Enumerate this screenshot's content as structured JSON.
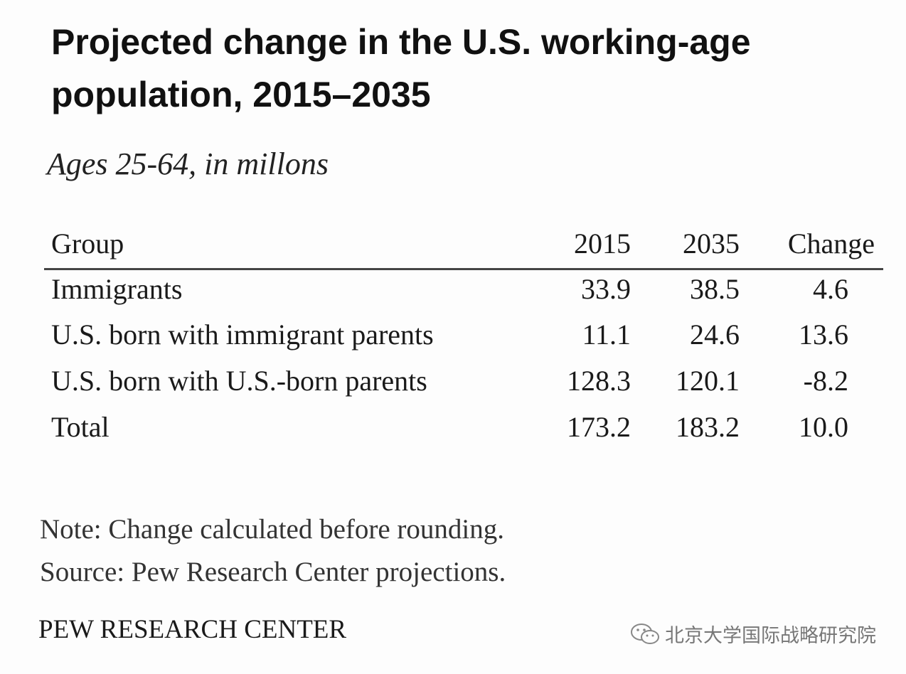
{
  "title": "Projected change in the U.S. working-age population, 2015–2035",
  "subtitle": "Ages 25-64, in millons",
  "table": {
    "header": [
      "Group",
      "2015",
      "2035",
      "Change"
    ],
    "rows": [
      [
        "Immigrants",
        "33.9",
        "38.5",
        "4.6"
      ],
      [
        "U.S. born with immigrant parents",
        "11.1",
        "24.6",
        "13.6"
      ],
      [
        "U.S. born with U.S.-born parents",
        "128.3",
        "120.1",
        "-8.2"
      ],
      [
        "Total",
        "173.2",
        "183.2",
        "10.0"
      ]
    ]
  },
  "note": "Note: Change calculated before rounding.",
  "source": "Source: Pew Research Center projections.",
  "brand": "PEW RESEARCH CENTER",
  "watermark": "北京大学国际战略研究院"
}
